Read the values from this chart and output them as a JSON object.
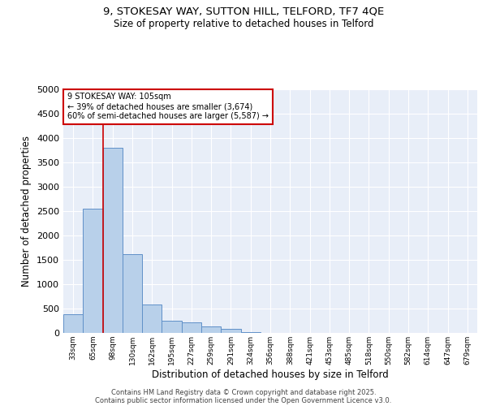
{
  "title1": "9, STOKESAY WAY, SUTTON HILL, TELFORD, TF7 4QE",
  "title2": "Size of property relative to detached houses in Telford",
  "xlabel": "Distribution of detached houses by size in Telford",
  "ylabel": "Number of detached properties",
  "categories": [
    "33sqm",
    "65sqm",
    "98sqm",
    "130sqm",
    "162sqm",
    "195sqm",
    "227sqm",
    "259sqm",
    "291sqm",
    "324sqm",
    "356sqm",
    "388sqm",
    "421sqm",
    "453sqm",
    "485sqm",
    "518sqm",
    "550sqm",
    "582sqm",
    "614sqm",
    "647sqm",
    "679sqm"
  ],
  "values": [
    380,
    2550,
    3800,
    1620,
    580,
    250,
    220,
    130,
    80,
    10,
    5,
    3,
    2,
    1,
    1,
    0,
    0,
    0,
    0,
    0,
    0
  ],
  "bar_color": "#b8d0ea",
  "bar_edge_color": "#6090c8",
  "vline_x": 1.5,
  "vline_color": "#cc0000",
  "annotation_text": "9 STOKESAY WAY: 105sqm\n← 39% of detached houses are smaller (3,674)\n60% of semi-detached houses are larger (5,587) →",
  "annotation_box_edgecolor": "#cc0000",
  "ylim": [
    0,
    5000
  ],
  "yticks": [
    0,
    500,
    1000,
    1500,
    2000,
    2500,
    3000,
    3500,
    4000,
    4500,
    5000
  ],
  "bg_color": "#e8eef8",
  "footer1": "Contains HM Land Registry data © Crown copyright and database right 2025.",
  "footer2": "Contains public sector information licensed under the Open Government Licence v3.0."
}
